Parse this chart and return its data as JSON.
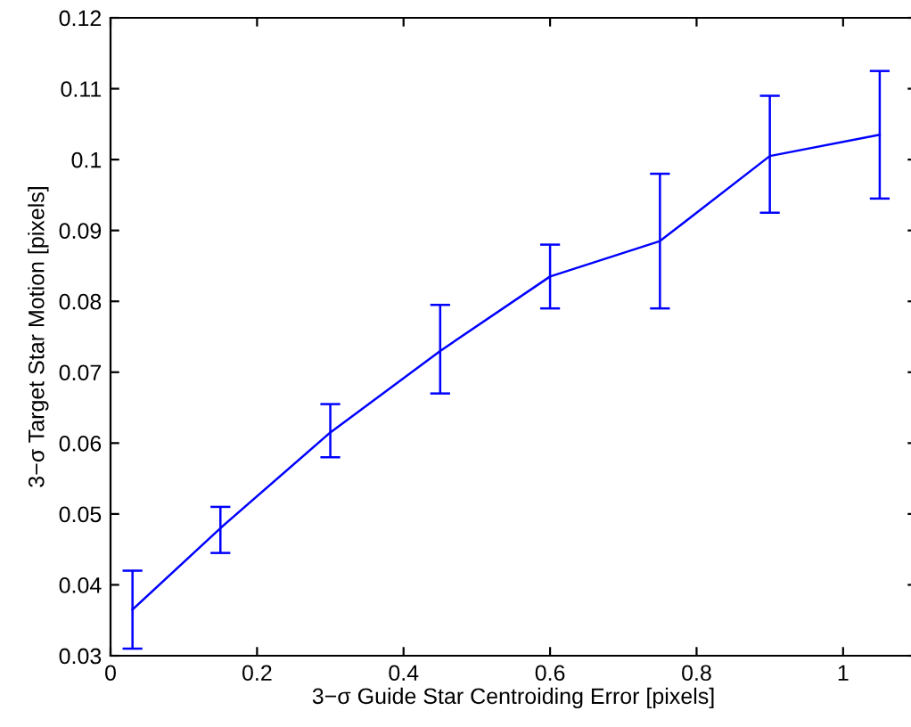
{
  "chart_data": {
    "type": "line",
    "xlabel": "3−σ Guide Star Centroiding Error [pixels]",
    "ylabel": "3−σ Target Star Motion [pixels]",
    "x": [
      0.03,
      0.15,
      0.3,
      0.45,
      0.6,
      0.75,
      0.9,
      1.05
    ],
    "series": [
      {
        "color": "#0000ff",
        "values": [
          0.0365,
          0.048,
          0.0615,
          0.073,
          0.0835,
          0.0885,
          0.1005,
          0.1035
        ],
        "errors": [
          [
            0.031,
            0.042
          ],
          [
            0.0445,
            0.051
          ],
          [
            0.058,
            0.0655
          ],
          [
            0.067,
            0.0795
          ],
          [
            0.079,
            0.088
          ],
          [
            0.079,
            0.098
          ],
          [
            0.0925,
            0.109
          ],
          [
            0.0945,
            0.1125
          ]
        ]
      }
    ],
    "xlim": [
      0,
      1.1
    ],
    "ylim": [
      0.03,
      0.12
    ],
    "xticks": [
      0,
      0.2,
      0.4,
      0.6,
      0.8,
      1
    ],
    "yticks": [
      0.03,
      0.04,
      0.05,
      0.06,
      0.07,
      0.08,
      0.09,
      0.1,
      0.11,
      0.12
    ],
    "grid": false,
    "legend": false,
    "marker": "none",
    "line_style": "solid"
  }
}
